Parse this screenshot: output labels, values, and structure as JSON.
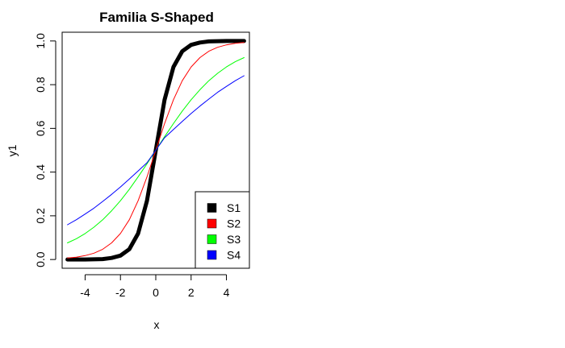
{
  "chart_data": {
    "type": "line",
    "title": "Familia S-Shaped",
    "xlabel": "x",
    "ylabel": "y1",
    "xlim": [
      -5.3,
      5.3
    ],
    "ylim": [
      -0.04,
      1.04
    ],
    "x_ticks": [
      -4,
      -2,
      0,
      2,
      4
    ],
    "x_tick_labels": [
      "-4",
      "-2",
      "0",
      "2",
      "4"
    ],
    "y_ticks": [
      0.0,
      0.2,
      0.4,
      0.6,
      0.8,
      1.0
    ],
    "y_tick_labels": [
      "0.0",
      "0.2",
      "0.4",
      "0.6",
      "0.8",
      "1.0"
    ],
    "grid": false,
    "legend_position": "bottom-right",
    "x": [
      -5,
      -4.5,
      -4,
      -3.5,
      -3,
      -2.5,
      -2,
      -1.5,
      -1,
      -0.5,
      0,
      0.5,
      1,
      1.5,
      2,
      2.5,
      3,
      3.5,
      4,
      4.5,
      5
    ],
    "series": [
      {
        "name": "S1",
        "color": "#000000",
        "values": [
          0.0,
          0.0,
          0.0,
          0.001,
          0.002,
          0.007,
          0.018,
          0.047,
          0.119,
          0.269,
          0.5,
          0.731,
          0.881,
          0.953,
          0.982,
          0.993,
          0.998,
          0.999,
          1.0,
          1.0,
          1.0
        ]
      },
      {
        "name": "S2",
        "color": "#ff0000",
        "values": [
          0.007,
          0.011,
          0.018,
          0.029,
          0.047,
          0.076,
          0.119,
          0.182,
          0.269,
          0.378,
          0.5,
          0.622,
          0.731,
          0.818,
          0.881,
          0.924,
          0.953,
          0.971,
          0.982,
          0.989,
          0.993
        ]
      },
      {
        "name": "S3",
        "color": "#00ff00",
        "values": [
          0.076,
          0.095,
          0.119,
          0.148,
          0.182,
          0.223,
          0.269,
          0.321,
          0.378,
          0.438,
          0.5,
          0.562,
          0.622,
          0.679,
          0.731,
          0.777,
          0.818,
          0.852,
          0.881,
          0.905,
          0.924
        ]
      },
      {
        "name": "S4",
        "color": "#0000ff",
        "values": [
          0.159,
          0.182,
          0.208,
          0.235,
          0.266,
          0.298,
          0.332,
          0.368,
          0.405,
          0.443,
          0.5,
          0.557,
          0.595,
          0.632,
          0.668,
          0.702,
          0.734,
          0.765,
          0.792,
          0.818,
          0.841
        ]
      }
    ]
  }
}
